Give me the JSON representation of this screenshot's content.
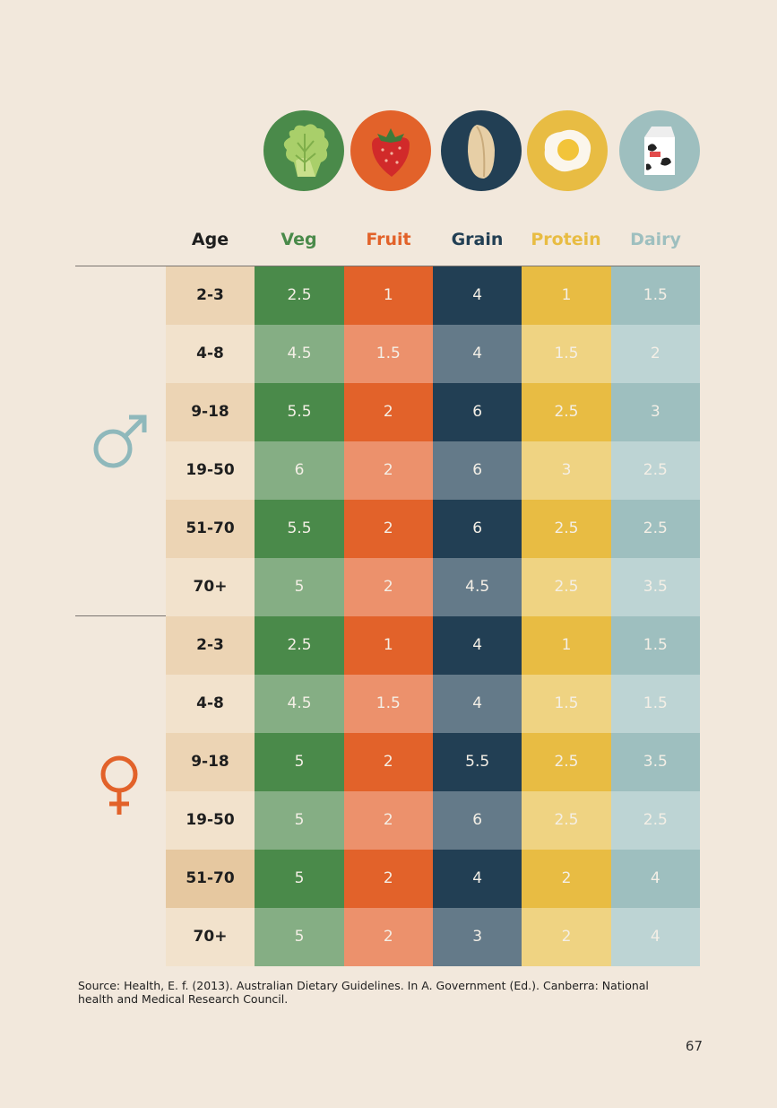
{
  "colors": {
    "background": "#f2e8dc",
    "veg_dark": "#4a8a4a",
    "veg_light": "#85ae84",
    "fruit_dark": "#e2622a",
    "fruit_light": "#ec916c",
    "grain_dark": "#223f54",
    "grain_light": "#647a89",
    "protein_dark": "#e8bc43",
    "protein_light": "#efd382",
    "dairy_dark": "#9ebfbf",
    "dairy_light": "#bdd4d4",
    "age_dark": "#ecd4b4",
    "age_light": "#f2e2cc",
    "male_symbol": "#8fb8bb",
    "female_symbol": "#e2622a"
  },
  "icons": [
    "lettuce-icon",
    "strawberry-icon",
    "bread-icon",
    "fried-egg-icon",
    "milk-carton-icon"
  ],
  "headers": {
    "age": "Age",
    "veg": "Veg",
    "fruit": "Fruit",
    "grain": "Grain",
    "protein": "Protein",
    "dairy": "Dairy"
  },
  "male": {
    "symbol": "♂",
    "rows": [
      {
        "age": "2-3",
        "veg": "2.5",
        "fruit": "1",
        "grain": "4",
        "protein": "1",
        "dairy": "1.5"
      },
      {
        "age": "4-8",
        "veg": "4.5",
        "fruit": "1.5",
        "grain": "4",
        "protein": "1.5",
        "dairy": "2"
      },
      {
        "age": "9-18",
        "veg": "5.5",
        "fruit": "2",
        "grain": "6",
        "protein": "2.5",
        "dairy": "3"
      },
      {
        "age": "19-50",
        "veg": "6",
        "fruit": "2",
        "grain": "6",
        "protein": "3",
        "dairy": "2.5"
      },
      {
        "age": "51-70",
        "veg": "5.5",
        "fruit": "2",
        "grain": "6",
        "protein": "2.5",
        "dairy": "2.5"
      },
      {
        "age": "70+",
        "veg": "5",
        "fruit": "2",
        "grain": "4.5",
        "protein": "2.5",
        "dairy": "3.5"
      }
    ]
  },
  "female": {
    "symbol": "♀",
    "rows": [
      {
        "age": "2-3",
        "veg": "2.5",
        "fruit": "1",
        "grain": "4",
        "protein": "1",
        "dairy": "1.5"
      },
      {
        "age": "4-8",
        "veg": "4.5",
        "fruit": "1.5",
        "grain": "4",
        "protein": "1.5",
        "dairy": "1.5"
      },
      {
        "age": "9-18",
        "veg": "5",
        "fruit": "2",
        "grain": "5.5",
        "protein": "2.5",
        "dairy": "3.5"
      },
      {
        "age": "19-50",
        "veg": "5",
        "fruit": "2",
        "grain": "6",
        "protein": "2.5",
        "dairy": "2.5"
      },
      {
        "age": "51-70",
        "veg": "5",
        "fruit": "2",
        "grain": "4",
        "protein": "2",
        "dairy": "4"
      },
      {
        "age": "70+",
        "veg": "5",
        "fruit": "2",
        "grain": "3",
        "protein": "2",
        "dairy": "4"
      }
    ]
  },
  "source": "Source: Health, E. f. (2013). Australian Dietary Guidelines. In A. Government (Ed.). Canberra: National health and Medical Research Council.",
  "page_number": "67"
}
